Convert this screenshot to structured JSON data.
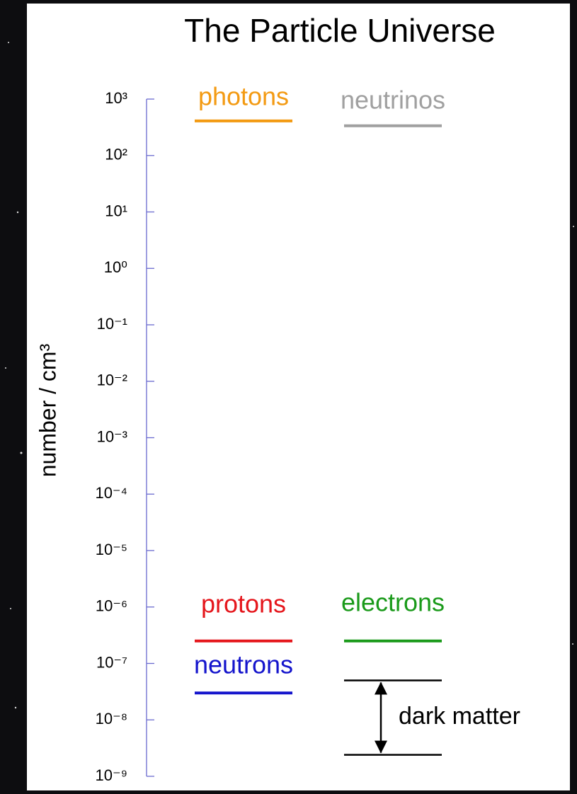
{
  "chart_data": {
    "type": "levels",
    "title": "The Particle Universe",
    "y_label": "number / cm³",
    "log_y": true,
    "ylim": [
      1e-09,
      1000
    ],
    "yticks": [
      {
        "value": 1000,
        "label": "10³"
      },
      {
        "value": 100,
        "label": "10²"
      },
      {
        "value": 10,
        "label": "10¹"
      },
      {
        "value": 1,
        "label": "10⁰"
      },
      {
        "value": 0.1,
        "label": "10⁻¹"
      },
      {
        "value": 0.01,
        "label": "10⁻²"
      },
      {
        "value": 0.001,
        "label": "10⁻³"
      },
      {
        "value": 0.0001,
        "label": "10⁻⁴"
      },
      {
        "value": 1e-05,
        "label": "10⁻⁵"
      },
      {
        "value": 1e-06,
        "label": "10⁻⁶"
      },
      {
        "value": 1e-07,
        "label": "10⁻⁷"
      },
      {
        "value": 1e-08,
        "label": "10⁻⁸"
      },
      {
        "value": 1e-09,
        "label": "10⁻⁹"
      }
    ],
    "axis_color": "#6b6bd0",
    "series": [
      {
        "name": "photons",
        "color": "#f39a12",
        "value": 410
      },
      {
        "name": "neutrinos",
        "color": "#a0a0a0",
        "value": 336
      },
      {
        "name": "protons",
        "color": "#e5161c",
        "value": 2.5e-07
      },
      {
        "name": "electrons",
        "color": "#1a9a1a",
        "value": 2.5e-07
      },
      {
        "name": "neutrons",
        "color": "#1414cc",
        "value": 3e-08
      },
      {
        "name": "dark matter",
        "color": "#000000",
        "range": [
          2.4e-09,
          5e-08
        ]
      }
    ]
  }
}
